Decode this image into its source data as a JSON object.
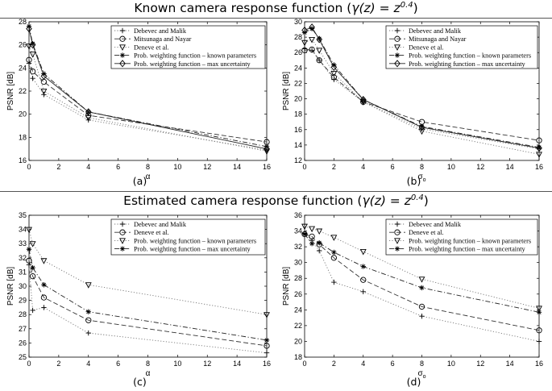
{
  "sections": [
    {
      "title_prefix": "Known  camera response function (",
      "title_formula": "γ(z) = z",
      "title_exp": "0.4",
      "title_suffix": ")"
    },
    {
      "title_prefix": "Estimated  camera response function (",
      "title_formula": "γ(z) = z",
      "title_exp": "0.4",
      "title_suffix": ")"
    }
  ],
  "chart_data": [
    {
      "type": "line",
      "panel_label": "(a)",
      "xlabel": "α",
      "ylabel": "PSNR [dB]",
      "xlim": [
        0,
        16
      ],
      "ylim": [
        16,
        28
      ],
      "xticks": [
        0,
        2,
        4,
        6,
        8,
        10,
        12,
        14,
        16
      ],
      "yticks": [
        16,
        18,
        20,
        22,
        24,
        26,
        28
      ],
      "x": [
        0,
        0.25,
        1,
        4,
        16
      ],
      "series": [
        {
          "name": "Debevec and Malik",
          "values": [
            24.4,
            23.1,
            21.7,
            19.5,
            16.9
          ],
          "marker": "plus",
          "dash": "dotted"
        },
        {
          "name": "Mitsunaga and Nayar",
          "values": [
            24.7,
            23.7,
            22.8,
            19.9,
            17.6
          ],
          "marker": "circle",
          "dash": "dashed"
        },
        {
          "name": "Deneve et al.",
          "values": [
            25.9,
            25.2,
            22.0,
            19.7,
            16.8
          ],
          "marker": "triangle",
          "dash": "dotted"
        },
        {
          "name": "Prob. weighting function – known parameters",
          "values": [
            27.6,
            26.1,
            23.5,
            20.2,
            17.2
          ],
          "marker": "star",
          "dash": "dashdot"
        },
        {
          "name": "Prob. weighting function – max uncertainty",
          "values": [
            27.4,
            26.0,
            23.3,
            20.2,
            17.0
          ],
          "marker": "diamond",
          "dash": "solid"
        }
      ]
    },
    {
      "type": "line",
      "panel_label": "(b)",
      "xlabel": "σ",
      "xlabel_sub": "o",
      "ylabel": "PSNR [dB]",
      "xlim": [
        0,
        16
      ],
      "ylim": [
        12,
        30
      ],
      "xticks": [
        0,
        2,
        4,
        6,
        8,
        10,
        12,
        14,
        16
      ],
      "yticks": [
        12,
        14,
        16,
        18,
        20,
        22,
        24,
        26,
        28,
        30
      ],
      "x": [
        0,
        0.5,
        1,
        2,
        4,
        8,
        16
      ],
      "series": [
        {
          "name": "Debevec and Malik",
          "values": [
            26.5,
            26.3,
            25.0,
            22.5,
            19.6,
            16.1,
            13.5
          ],
          "marker": "plus",
          "dash": "dotted"
        },
        {
          "name": "Mitsunaga and Nayar",
          "values": [
            26.3,
            26.4,
            25.0,
            22.8,
            19.6,
            17.0,
            14.6
          ],
          "marker": "circle",
          "dash": "dashed"
        },
        {
          "name": "Deneve et al.",
          "values": [
            27.3,
            27.7,
            26.3,
            23.3,
            19.6,
            15.8,
            12.8
          ],
          "marker": "triangle",
          "dash": "dotted"
        },
        {
          "name": "Prob. weighting function – known parameters",
          "values": [
            28.6,
            29.1,
            27.8,
            24.4,
            19.9,
            16.4,
            13.7
          ],
          "marker": "star",
          "dash": "dashdot"
        },
        {
          "name": "Prob. weighting function – max uncertainty",
          "values": [
            28.9,
            29.3,
            27.7,
            24.1,
            19.9,
            16.3,
            13.6
          ],
          "marker": "diamond",
          "dash": "solid"
        }
      ]
    },
    {
      "type": "line",
      "panel_label": "(c)",
      "xlabel": "α",
      "ylabel": "PSNR [dB]",
      "xlim": [
        0,
        16
      ],
      "ylim": [
        25,
        35
      ],
      "xticks": [
        0,
        2,
        4,
        6,
        8,
        10,
        12,
        14,
        16
      ],
      "yticks": [
        25,
        26,
        27,
        28,
        29,
        30,
        31,
        32,
        33,
        34,
        35
      ],
      "x": [
        0,
        0.25,
        1,
        4,
        16
      ],
      "series": [
        {
          "name": "Debevec and Malik",
          "values": [
            31.5,
            28.3,
            28.5,
            26.7,
            25.3
          ],
          "marker": "plus",
          "dash": "dotted"
        },
        {
          "name": "Deneve et al.",
          "values": [
            31.8,
            30.7,
            29.2,
            27.6,
            25.8
          ],
          "marker": "circle",
          "dash": "dashed"
        },
        {
          "name": "Prob. weighting function – known parameters",
          "values": [
            34.0,
            33.0,
            31.8,
            30.1,
            28.0
          ],
          "marker": "triangle",
          "dash": "dotted"
        },
        {
          "name": "Prob. weighting function – max uncertainty",
          "values": [
            32.6,
            31.3,
            30.1,
            28.2,
            26.2
          ],
          "marker": "star",
          "dash": "dashdot"
        }
      ]
    },
    {
      "type": "line",
      "panel_label": "(d)",
      "xlabel": "σ",
      "xlabel_sub": "o",
      "ylabel": "PSNR [dB]",
      "xlim": [
        0,
        16
      ],
      "ylim": [
        18,
        36
      ],
      "xticks": [
        0,
        2,
        4,
        6,
        8,
        10,
        12,
        14,
        16
      ],
      "yticks": [
        18,
        20,
        22,
        24,
        26,
        28,
        30,
        32,
        34,
        36
      ],
      "x": [
        0,
        0.5,
        1,
        2,
        4,
        8,
        16
      ],
      "series": [
        {
          "name": "Debevec and Malik",
          "values": [
            33.7,
            32.8,
            31.5,
            27.5,
            26.3,
            23.2,
            20.0
          ],
          "marker": "plus",
          "dash": "dotted"
        },
        {
          "name": "Deneve et al.",
          "values": [
            33.6,
            33.3,
            32.3,
            30.6,
            27.8,
            24.4,
            21.4
          ],
          "marker": "circle",
          "dash": "dashed"
        },
        {
          "name": "Prob. weighting function – known parameters",
          "values": [
            34.6,
            34.3,
            34.0,
            33.2,
            31.4,
            27.9,
            24.2
          ],
          "marker": "triangle",
          "dash": "dotted"
        },
        {
          "name": "Prob. weighting function – max uncertainty",
          "values": [
            33.6,
            32.4,
            32.5,
            31.3,
            29.5,
            26.8,
            23.7
          ],
          "marker": "star",
          "dash": "dashdot"
        }
      ]
    }
  ]
}
